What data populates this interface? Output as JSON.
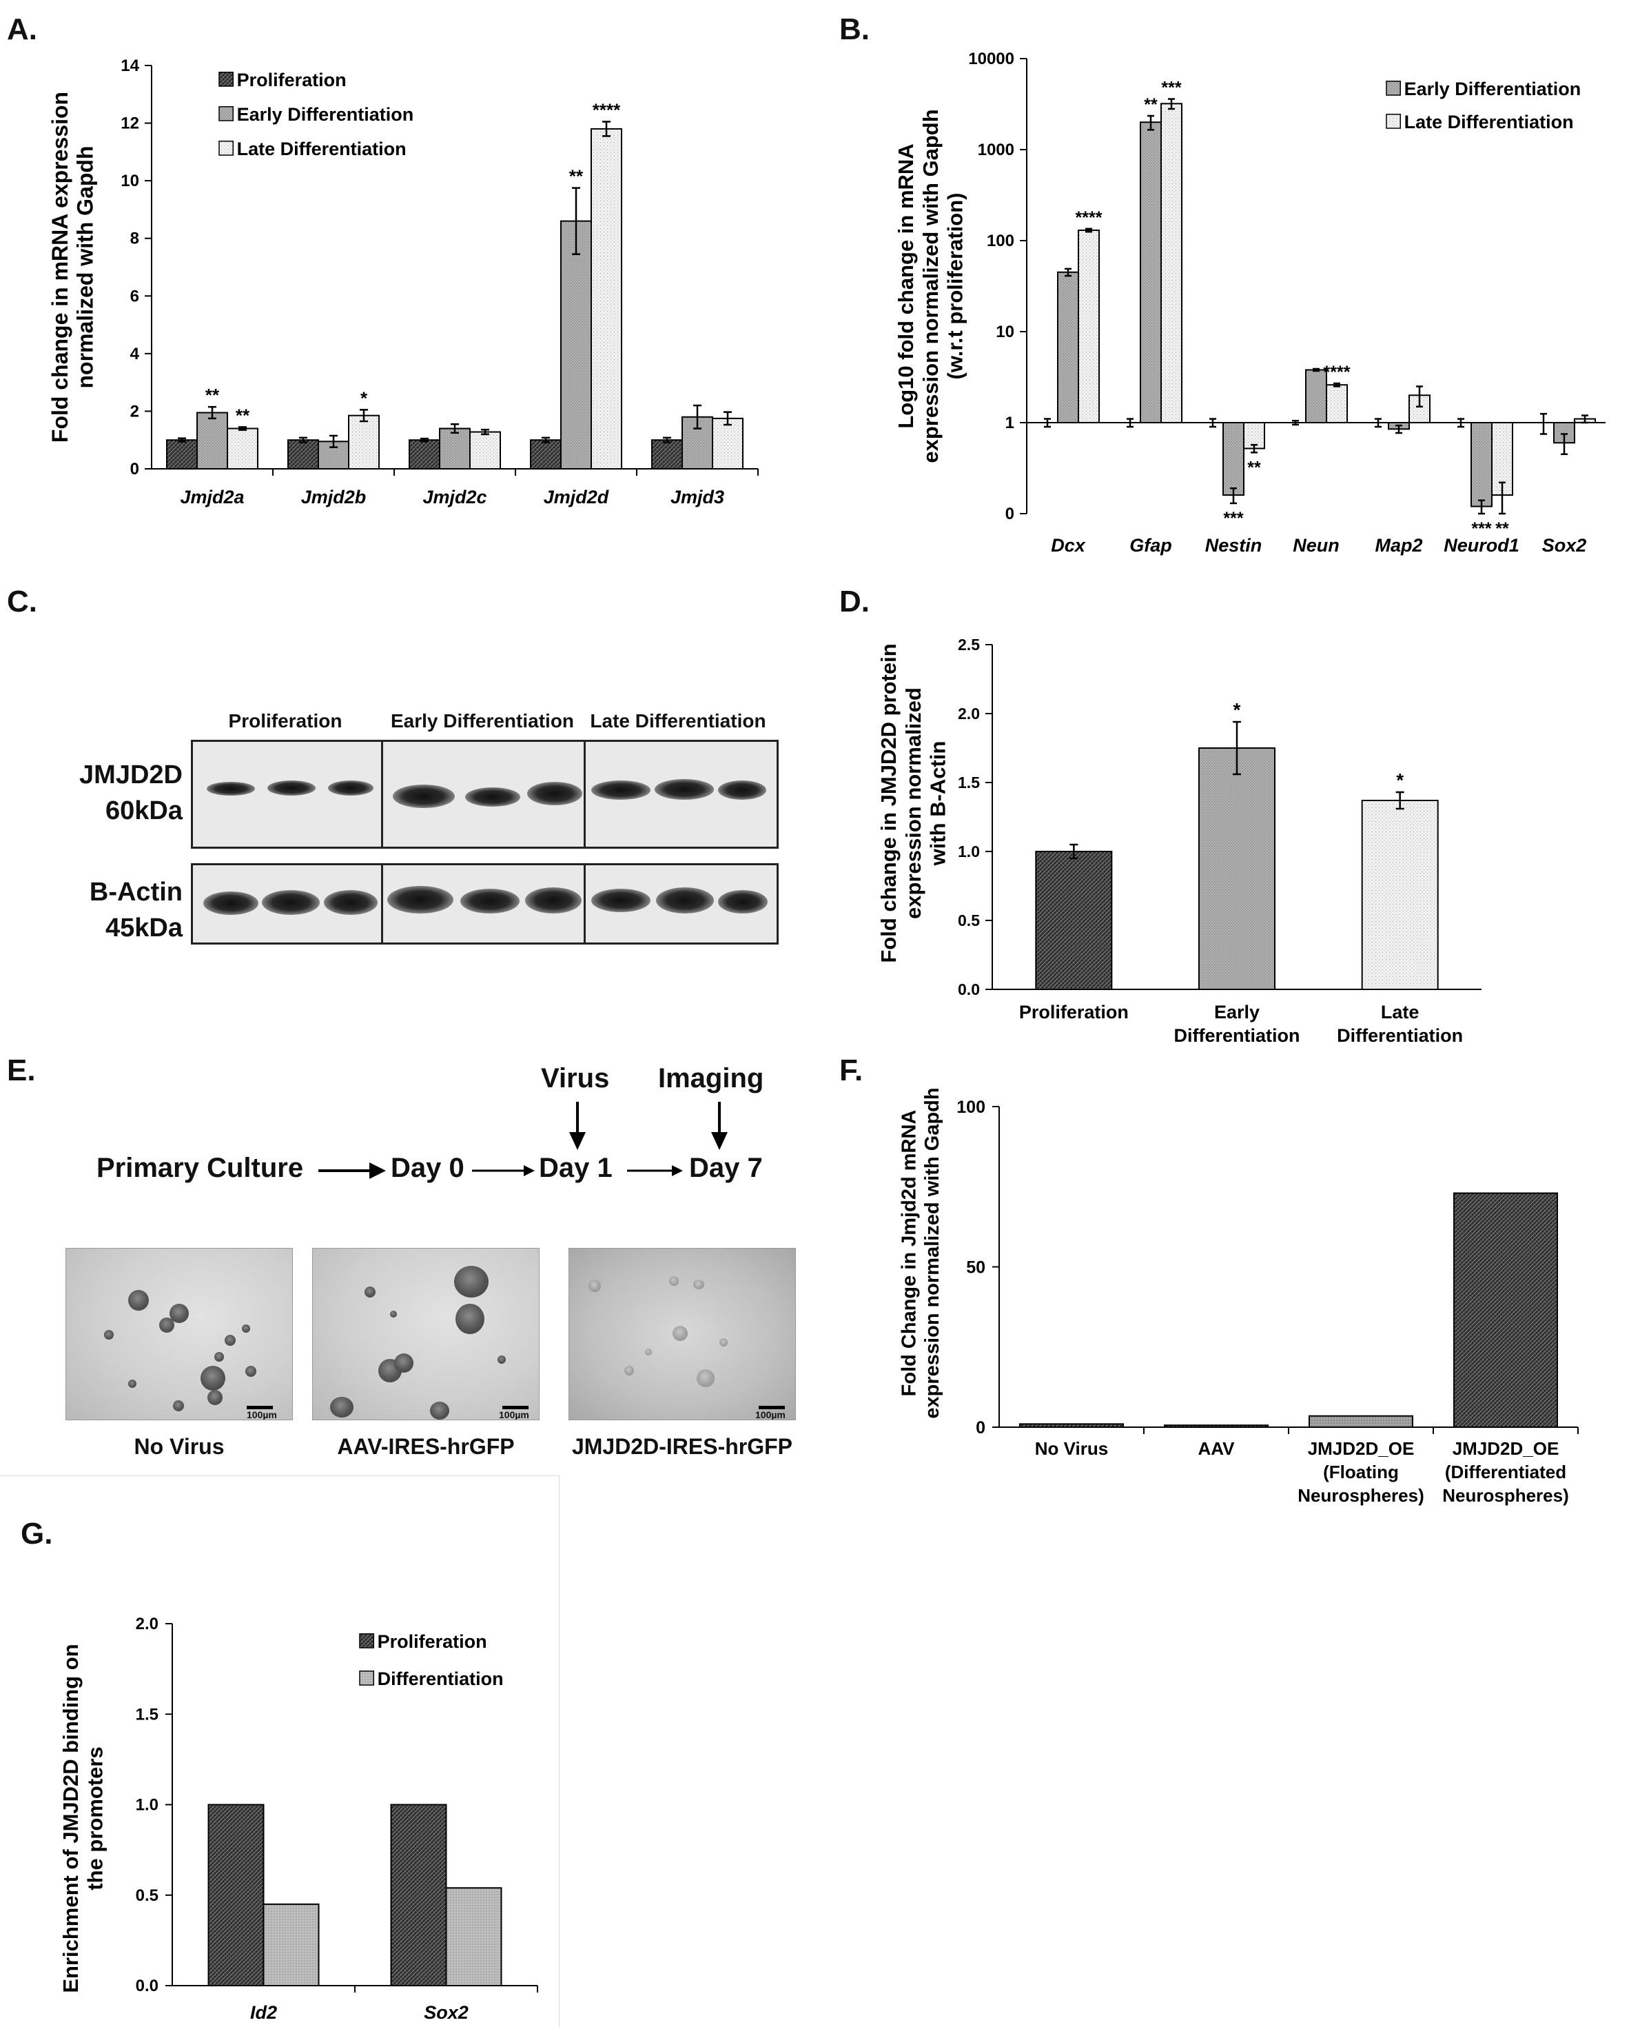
{
  "panels": {
    "A": "A.",
    "B": "B.",
    "C": "C.",
    "D": "D.",
    "E": "E.",
    "F": "F.",
    "G": "G."
  },
  "blot": {
    "lanes": [
      "Proliferation",
      "Early Differentiation",
      "Late Differentiation"
    ],
    "row1_label_line1": "JMJD2D",
    "row1_label_line2": "60kDa",
    "row2_label_line1": "B-Actin",
    "row2_label_line2": "45kDa"
  },
  "timeline": {
    "steps": [
      "Primary Culture",
      "Day 0",
      "Day 1",
      "Day 7"
    ],
    "virus_label": "Virus",
    "imaging_label": "Imaging",
    "images": [
      "No Virus",
      "AAV-IRES-hrGFP",
      "JMJD2D-IRES-hrGFP"
    ],
    "scale_label": "100µm"
  },
  "colors": {
    "proliferation": "#2b2b2b",
    "early": "#b3b3b3",
    "late": "#f2f2f2",
    "differentiation": "#bdbdbd",
    "f_grey": "#a3a3a3"
  },
  "chart_data": [
    {
      "id": "A",
      "type": "bar",
      "ylabel_lines": [
        "Fold change in mRNA expression",
        "normalized with Gapdh"
      ],
      "ylim": [
        0,
        14
      ],
      "yticks": [
        0,
        2,
        4,
        6,
        8,
        10,
        12,
        14
      ],
      "categories": [
        "Jmjd2a",
        "Jmjd2b",
        "Jmjd2c",
        "Jmjd2d",
        "Jmjd3"
      ],
      "series": [
        {
          "name": "Proliferation",
          "values": [
            1.0,
            1.0,
            1.0,
            1.0,
            1.0
          ],
          "err": [
            0.06,
            0.08,
            0.05,
            0.08,
            0.08
          ],
          "sig": [
            "",
            "",
            "",
            "",
            ""
          ]
        },
        {
          "name": "Early Differentiation",
          "values": [
            1.95,
            0.95,
            1.4,
            8.6,
            1.8
          ],
          "err": [
            0.2,
            0.2,
            0.15,
            1.15,
            0.4
          ],
          "sig": [
            "**",
            "",
            "",
            "**",
            ""
          ]
        },
        {
          "name": "Late Differentiation",
          "values": [
            1.4,
            1.85,
            1.28,
            11.8,
            1.75
          ],
          "err": [
            0.05,
            0.2,
            0.08,
            0.25,
            0.22
          ],
          "sig": [
            "**",
            "*",
            "",
            "****",
            ""
          ]
        }
      ],
      "legend": "top-right"
    },
    {
      "id": "B",
      "type": "bar",
      "scale": "log",
      "ylabel_lines": [
        "Log10 fold change in mRNA",
        "expression normalized with Gapdh",
        "(w.r.t proliferation)"
      ],
      "yticks": [
        0,
        1,
        10,
        100,
        1000,
        10000
      ],
      "ytick_labels": [
        "0",
        "1",
        "10",
        "100",
        "1000",
        "10000"
      ],
      "categories": [
        "Dcx",
        "Gfap",
        "Nestin",
        "Neun",
        "Map2",
        "Neurod1",
        "Sox2"
      ],
      "series": [
        {
          "name": "Proliferation",
          "values": [
            1,
            1,
            1,
            1,
            1,
            1,
            1
          ],
          "err": [
            0.1,
            0.1,
            0.1,
            0.05,
            0.1,
            0.1,
            0.25
          ],
          "sig": [
            "",
            "",
            "",
            "",
            "",
            "",
            ""
          ]
        },
        {
          "name": "Early Differentiation",
          "values": [
            45,
            2000,
            0.16,
            3.8,
            0.85,
            0.12,
            0.6
          ],
          "err": [
            4,
            350,
            0.03,
            0.1,
            0.08,
            0.02,
            0.15
          ],
          "sig": [
            "",
            "**",
            "***",
            "",
            "",
            "***",
            ""
          ]
        },
        {
          "name": "Late Differentiation",
          "values": [
            130,
            3200,
            0.52,
            2.6,
            2.0,
            0.16,
            1.1
          ],
          "err": [
            5,
            400,
            0.05,
            0.1,
            0.5,
            0.06,
            0.1
          ],
          "sig": [
            "****",
            "***",
            "**",
            "****",
            "",
            "**",
            ""
          ]
        }
      ],
      "legend_entries": [
        "Early Differentiation",
        "Late Differentiation"
      ],
      "legend": "top-right"
    },
    {
      "id": "D",
      "type": "bar",
      "ylabel_lines": [
        "Fold change in JMJD2D protein",
        "expression normalized",
        "with B-Actin"
      ],
      "ylim": [
        0,
        2.5
      ],
      "yticks": [
        0.0,
        0.5,
        1.0,
        1.5,
        2.0,
        2.5
      ],
      "ytick_labels": [
        "0.0",
        "0.5",
        "1.0",
        "1.5",
        "2.0",
        "2.5"
      ],
      "categories": [
        "Proliferation",
        "Early Differentiation",
        "Late Differentiation"
      ],
      "category_lines": [
        [
          "Proliferation"
        ],
        [
          "Early",
          "Differentiation"
        ],
        [
          "Late",
          "Differentiation"
        ]
      ],
      "values": [
        1.0,
        1.75,
        1.37
      ],
      "err": [
        0.05,
        0.19,
        0.06
      ],
      "sig": [
        "",
        "*",
        "*"
      ]
    },
    {
      "id": "F",
      "type": "bar",
      "ylabel_lines": [
        "Fold Change in Jmjd2d mRNA",
        "expression normalized with Gapdh"
      ],
      "ylim": [
        0,
        100
      ],
      "yticks": [
        0,
        50,
        100
      ],
      "ytick_labels": [
        "0",
        "50",
        "100"
      ],
      "categories": [
        "No Virus",
        "AAV",
        "JMJD2D_OE (Floating Neurospheres)",
        "JMJD2D_OE (Differentiated Neurospheres)"
      ],
      "category_lines": [
        [
          "No Virus"
        ],
        [
          "AAV"
        ],
        [
          "JMJD2D_OE",
          "(Floating",
          "Neurospheres)"
        ],
        [
          "JMJD2D_OE",
          "(Differentiated",
          "Neurospheres)"
        ]
      ],
      "values": [
        1.0,
        0.6,
        3.5,
        73
      ]
    },
    {
      "id": "G",
      "type": "bar",
      "ylabel_lines": [
        "Enrichment of JMJD2D binding on",
        "the promoters"
      ],
      "ylim": [
        0,
        2.0
      ],
      "yticks": [
        0.0,
        0.5,
        1.0,
        1.5,
        2.0
      ],
      "ytick_labels": [
        "0.0",
        "0.5",
        "1.0",
        "1.5",
        "2.0"
      ],
      "categories": [
        "Id2",
        "Sox2"
      ],
      "series": [
        {
          "name": "Proliferation",
          "values": [
            1.0,
            1.0
          ]
        },
        {
          "name": "Differentiation",
          "values": [
            0.45,
            0.54
          ]
        }
      ],
      "legend": "top-right"
    }
  ]
}
